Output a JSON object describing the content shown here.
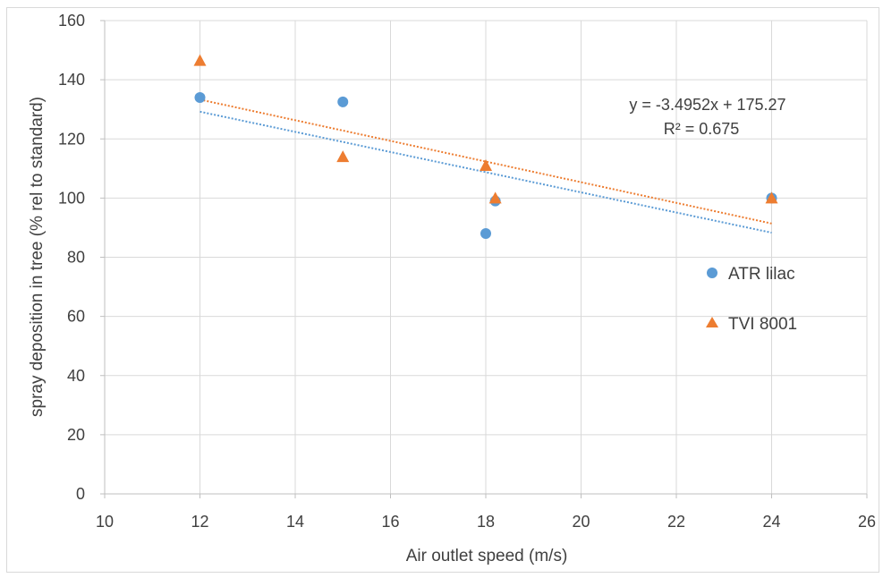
{
  "chart_data": {
    "type": "scatter",
    "xlabel": "Air outlet speed (m/s)",
    "ylabel": "spray deposition in tree (% rel to standard)",
    "xlim": [
      10,
      26
    ],
    "ylim": [
      0,
      160
    ],
    "xticks": [
      10,
      12,
      14,
      16,
      18,
      20,
      22,
      24,
      26
    ],
    "yticks": [
      0,
      20,
      40,
      60,
      80,
      100,
      120,
      140,
      160
    ],
    "x_tick_labels": [
      "10",
      "12",
      "14",
      "16",
      "18",
      "20",
      "22",
      "24",
      "26"
    ],
    "y_tick_labels": [
      "0",
      "20",
      "40",
      "60",
      "80",
      "100",
      "120",
      "140",
      "160"
    ],
    "grid": true,
    "legend_position": "right",
    "series": [
      {
        "name": "ATR lilac",
        "marker": "circle",
        "color": "#5b9bd5",
        "x": [
          12,
          15,
          18,
          18.2,
          24
        ],
        "y": [
          134,
          132.5,
          88,
          99,
          100
        ],
        "trendline": {
          "type": "linear",
          "x": [
            12,
            24
          ],
          "y": [
            129.2,
            88.3
          ]
        }
      },
      {
        "name": "TVI 8001",
        "marker": "triangle",
        "color": "#ed7d31",
        "x": [
          12,
          15,
          18,
          18.2,
          24
        ],
        "y": [
          146.5,
          114,
          111,
          100,
          100
        ],
        "trendline": {
          "type": "linear",
          "x": [
            12,
            24
          ],
          "y": [
            133.3,
            91.4
          ]
        }
      }
    ],
    "annotations": [
      "y = -3.4952x + 175.27",
      "R² = 0.675"
    ]
  }
}
